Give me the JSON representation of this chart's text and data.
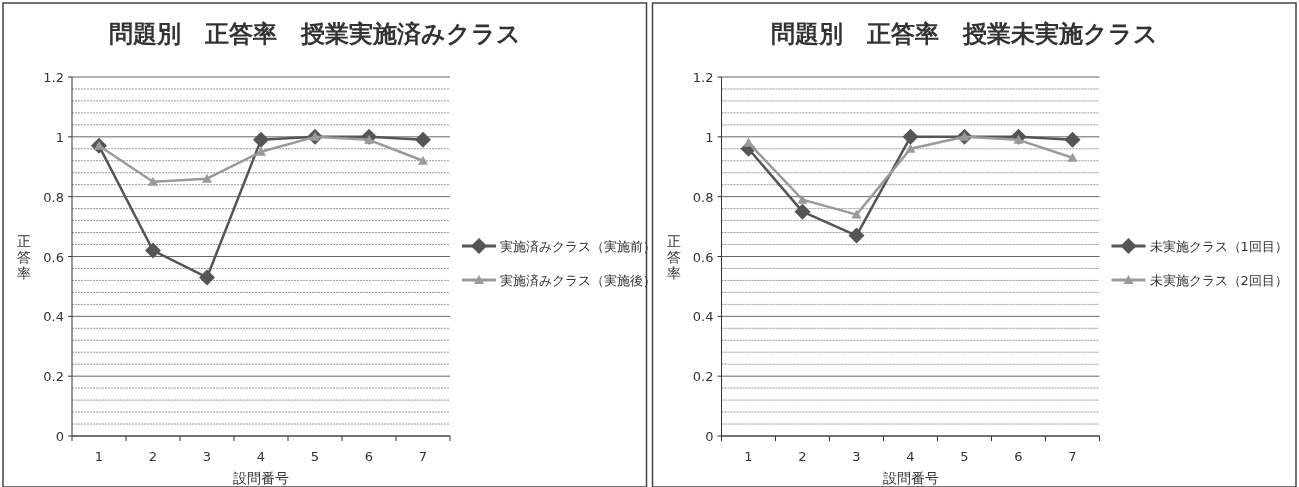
{
  "chart_data": [
    {
      "type": "line",
      "title": "問題別　正答率　授業実施済みクラス",
      "xlabel": "設問番号",
      "ylabel": "正答率",
      "categories": [
        "1",
        "2",
        "3",
        "4",
        "5",
        "6",
        "7"
      ],
      "ylim": [
        0,
        1.2
      ],
      "yticks": [
        0,
        {
          "value": 0.04,
          "label": null
        },
        {
          "value": 0.08,
          "label": null
        },
        {
          "value": 0.12,
          "label": null
        },
        {
          "value": 0.16,
          "label": null
        },
        0.2,
        {
          "value": 0.24,
          "label": null
        },
        {
          "value": 0.28,
          "label": null
        },
        {
          "value": 0.32,
          "label": null
        },
        {
          "value": 0.36,
          "label": null
        },
        0.4,
        {
          "value": 0.44,
          "label": null
        },
        {
          "value": 0.48,
          "label": null
        },
        {
          "value": 0.52,
          "label": null
        },
        {
          "value": 0.56,
          "label": null
        },
        0.6,
        {
          "value": 0.64,
          "label": null
        },
        {
          "value": 0.68,
          "label": null
        },
        {
          "value": 0.72,
          "label": null
        },
        {
          "value": 0.76,
          "label": null
        },
        0.8,
        {
          "value": 0.84,
          "label": null
        },
        {
          "value": 0.88,
          "label": null
        },
        {
          "value": 0.92,
          "label": null
        },
        {
          "value": 0.96,
          "label": null
        },
        1,
        {
          "value": 1.04,
          "label": null
        },
        {
          "value": 1.08,
          "label": null
        },
        {
          "value": 1.12,
          "label": null
        },
        {
          "value": 1.16,
          "label": null
        },
        1.2
      ],
      "grid": "y",
      "legend": "right",
      "series": [
        {
          "name": "実施済みクラス（実施前）",
          "color": "#555555",
          "marker": "diamond",
          "values": [
            0.97,
            0.62,
            0.53,
            0.99,
            1.0,
            1.0,
            0.99
          ]
        },
        {
          "name": "実施済みクラス（実施後）",
          "color": "#9a9a9a",
          "marker": "triangle",
          "values": [
            0.97,
            0.85,
            0.86,
            0.95,
            1.0,
            0.99,
            0.92
          ]
        }
      ]
    },
    {
      "type": "line",
      "title": "問題別　正答率　授業未実施クラス",
      "xlabel": "設問番号",
      "ylabel": "正答率",
      "categories": [
        "1",
        "2",
        "3",
        "4",
        "5",
        "6",
        "7"
      ],
      "ylim": [
        0,
        1.2
      ],
      "yticks": [
        0,
        {
          "value": 0.04,
          "label": null
        },
        {
          "value": 0.08,
          "label": null
        },
        {
          "value": 0.12,
          "label": null
        },
        {
          "value": 0.16,
          "label": null
        },
        0.2,
        {
          "value": 0.24,
          "label": null
        },
        {
          "value": 0.28,
          "label": null
        },
        {
          "value": 0.32,
          "label": null
        },
        {
          "value": 0.36,
          "label": null
        },
        0.4,
        {
          "value": 0.44,
          "label": null
        },
        {
          "value": 0.48,
          "label": null
        },
        {
          "value": 0.52,
          "label": null
        },
        {
          "value": 0.56,
          "label": null
        },
        0.6,
        {
          "value": 0.64,
          "label": null
        },
        {
          "value": 0.68,
          "label": null
        },
        {
          "value": 0.72,
          "label": null
        },
        {
          "value": 0.76,
          "label": null
        },
        0.8,
        {
          "value": 0.84,
          "label": null
        },
        {
          "value": 0.88,
          "label": null
        },
        {
          "value": 0.92,
          "label": null
        },
        {
          "value": 0.96,
          "label": null
        },
        1,
        {
          "value": 1.04,
          "label": null
        },
        {
          "value": 1.08,
          "label": null
        },
        {
          "value": 1.12,
          "label": null
        },
        {
          "value": 1.16,
          "label": null
        },
        1.2
      ],
      "grid": "y",
      "legend": "right",
      "series": [
        {
          "name": "未実施クラス（1回目）",
          "color": "#555555",
          "marker": "diamond",
          "values": [
            0.96,
            0.75,
            0.67,
            1.0,
            1.0,
            1.0,
            0.99
          ]
        },
        {
          "name": "未実施クラス（2回目）",
          "color": "#9a9a9a",
          "marker": "triangle",
          "values": [
            0.98,
            0.79,
            0.74,
            0.96,
            1.0,
            0.99,
            0.93
          ]
        }
      ]
    }
  ]
}
